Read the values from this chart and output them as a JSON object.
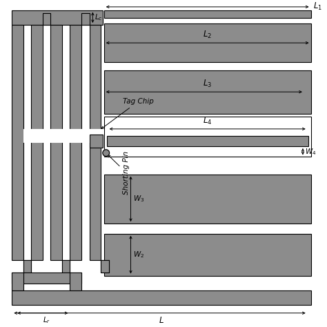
{
  "fig_width": 4.74,
  "fig_height": 4.74,
  "dpi": 100,
  "bg_color": "#ffffff",
  "patch_gray": "#8c8c8c",
  "ec": "black",
  "lw": 0.8,
  "labels": {
    "L1": "$L_1$",
    "L2": "$L_2$",
    "L3": "$L_3$",
    "L4": "$L_4$",
    "L": "$L$",
    "Lc": "$L_c$",
    "Lr": "$L_r$",
    "W2": "$W_2$",
    "W3": "$W_3$",
    "W4": "$W_4$",
    "Tag": "Tag Chip",
    "Short": "Shorting Pin"
  }
}
